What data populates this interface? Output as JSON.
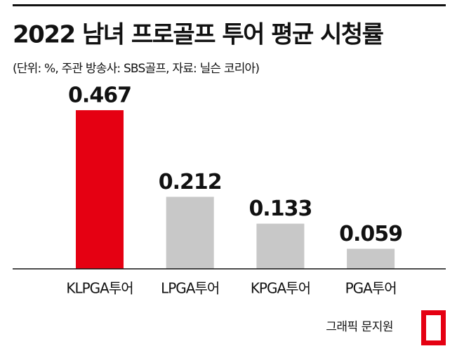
{
  "chart_data": {
    "type": "bar",
    "title": "2022 남녀 프로골프 투어 평균 시청률",
    "subtitle": "(단위: %, 주관 방송사: SBS골프, 자료: 닐슨 코리아)",
    "categories": [
      "KLPGA투어",
      "LPGA투어",
      "KPGA투어",
      "PGA투어"
    ],
    "values": [
      0.467,
      0.212,
      0.133,
      0.059
    ],
    "colors": [
      "#e50012",
      "#c8c8c8",
      "#c8c8c8",
      "#c8c8c8"
    ],
    "ylim": [
      0,
      0.5
    ],
    "credit": "그래픽 문지원"
  }
}
